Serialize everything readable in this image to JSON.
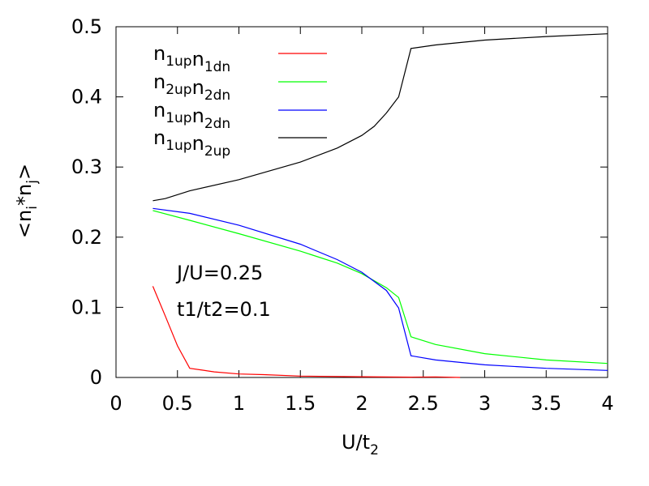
{
  "chart_data": {
    "type": "line",
    "xlabel": {
      "base": "U/t",
      "sub": "2"
    },
    "ylabel": {
      "p1": "<n",
      "s1": "i",
      "p2": "*n",
      "s2": "j",
      "p3": ">"
    },
    "xlim": [
      0,
      4
    ],
    "ylim": [
      0,
      0.5
    ],
    "xticks": [
      "0",
      "0.5",
      "1",
      "1.5",
      "2",
      "2.5",
      "3",
      "3.5",
      "4"
    ],
    "yticks": [
      "0",
      "0.1",
      "0.2",
      "0.3",
      "0.4",
      "0.5"
    ],
    "grid": false,
    "legend_position": "top-left",
    "annotations": [
      "J/U=0.25",
      "t1/t2=0.1"
    ],
    "series": [
      {
        "name": "n1upn1dn",
        "label_parts": [
          [
            "n",
            "1up"
          ],
          [
            "n",
            "1dn"
          ]
        ],
        "color": "#ff0000",
        "x": [
          0.3,
          0.4,
          0.5,
          0.6,
          0.7,
          0.8,
          1.0,
          1.2,
          1.5,
          2.0,
          2.4,
          2.6,
          2.8
        ],
        "y": [
          0.13,
          0.088,
          0.045,
          0.013,
          0.0105,
          0.008,
          0.005,
          0.004,
          0.002,
          0.001,
          0.0005,
          0.0008,
          0.0
        ]
      },
      {
        "name": "n2upn2dn",
        "label_parts": [
          [
            "n",
            "2up"
          ],
          [
            "n",
            "2dn"
          ]
        ],
        "color": "#00ff00",
        "x": [
          0.3,
          0.6,
          1.0,
          1.5,
          1.8,
          2.0,
          2.2,
          2.3,
          2.4,
          2.6,
          3.0,
          3.5,
          4.0
        ],
        "y": [
          0.238,
          0.224,
          0.205,
          0.18,
          0.163,
          0.148,
          0.128,
          0.114,
          0.058,
          0.047,
          0.034,
          0.025,
          0.02
        ]
      },
      {
        "name": "n1upn2dn",
        "label_parts": [
          [
            "n",
            "1up"
          ],
          [
            "n",
            "2dn"
          ]
        ],
        "color": "#0000ff",
        "x": [
          0.3,
          0.6,
          1.0,
          1.5,
          1.8,
          2.0,
          2.2,
          2.3,
          2.4,
          2.6,
          3.0,
          3.5,
          4.0
        ],
        "y": [
          0.241,
          0.234,
          0.217,
          0.19,
          0.168,
          0.15,
          0.124,
          0.099,
          0.031,
          0.025,
          0.018,
          0.013,
          0.01
        ]
      },
      {
        "name": "n1upn2up",
        "label_parts": [
          [
            "n",
            "1up"
          ],
          [
            "n",
            "2up"
          ]
        ],
        "color": "#000000",
        "x": [
          0.3,
          0.4,
          0.6,
          1.0,
          1.5,
          1.8,
          2.0,
          2.1,
          2.2,
          2.3,
          2.4,
          2.6,
          3.0,
          3.5,
          4.0
        ],
        "y": [
          0.252,
          0.255,
          0.266,
          0.282,
          0.307,
          0.327,
          0.345,
          0.358,
          0.377,
          0.4,
          0.469,
          0.474,
          0.481,
          0.486,
          0.49
        ]
      }
    ]
  }
}
